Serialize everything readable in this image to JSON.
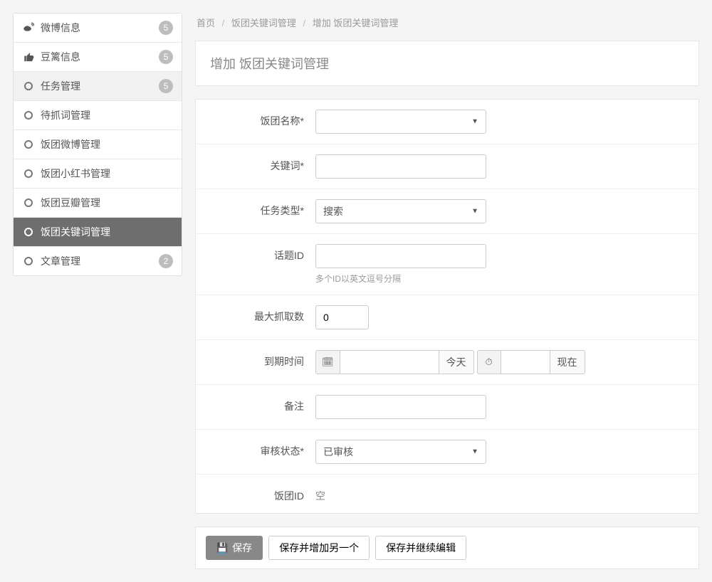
{
  "colors": {
    "page_bg": "#f5f5f5",
    "panel_border": "#e5e5e5",
    "muted_text": "#9a9a9a",
    "sidebar_active_bg": "#6e6e6e",
    "badge_bg": "#bdbdbd"
  },
  "sidebar": {
    "items": [
      {
        "icon": "weibo",
        "label": "微博信息",
        "badge": "5",
        "active": false,
        "shaded": false
      },
      {
        "icon": "thumb",
        "label": "豆篱信息",
        "badge": "5",
        "active": false,
        "shaded": false
      },
      {
        "icon": "circ",
        "label": "任务管理",
        "badge": "5",
        "active": false,
        "shaded": true
      },
      {
        "icon": "circ",
        "label": "待抓词管理",
        "badge": "",
        "active": false,
        "shaded": false
      },
      {
        "icon": "circ",
        "label": "饭团微博管理",
        "badge": "",
        "active": false,
        "shaded": false
      },
      {
        "icon": "circ",
        "label": "饭团小红书管理",
        "badge": "",
        "active": false,
        "shaded": false
      },
      {
        "icon": "circ",
        "label": "饭团豆瓣管理",
        "badge": "",
        "active": false,
        "shaded": false
      },
      {
        "icon": "circ",
        "label": "饭团关键词管理",
        "badge": "",
        "active": true,
        "shaded": false
      },
      {
        "icon": "circ",
        "label": "文章管理",
        "badge": "2",
        "active": false,
        "shaded": false
      }
    ]
  },
  "breadcrumb": {
    "home": "首页",
    "section": "饭团关键词管理",
    "current": "增加 饭团关键词管理"
  },
  "panel": {
    "title": "增加 饭团关键词管理"
  },
  "form": {
    "name": {
      "label": "饭团名称*",
      "value": ""
    },
    "keyword": {
      "label": "关键词*",
      "value": ""
    },
    "task_type": {
      "label": "任务类型*",
      "value": "搜索"
    },
    "topic_id": {
      "label": "话题ID",
      "value": "",
      "help": "多个ID以英文逗号分隔"
    },
    "max_fetch": {
      "label": "最大抓取数",
      "value": "0"
    },
    "expire": {
      "label": "到期时间",
      "date_value": "",
      "today": "今天",
      "time_value": "",
      "now": "现在"
    },
    "remark": {
      "label": "备注",
      "value": ""
    },
    "review": {
      "label": "审核状态*",
      "value": "已审核"
    },
    "fantuan_id": {
      "label": "饭团ID",
      "value": "空"
    }
  },
  "actions": {
    "save": "保存",
    "save_add": "保存并增加另一个",
    "save_continue": "保存并继续编辑"
  },
  "icons": {
    "save_glyph": "💾",
    "calendar_glyph": "🗓",
    "clock_glyph": "⏱"
  }
}
